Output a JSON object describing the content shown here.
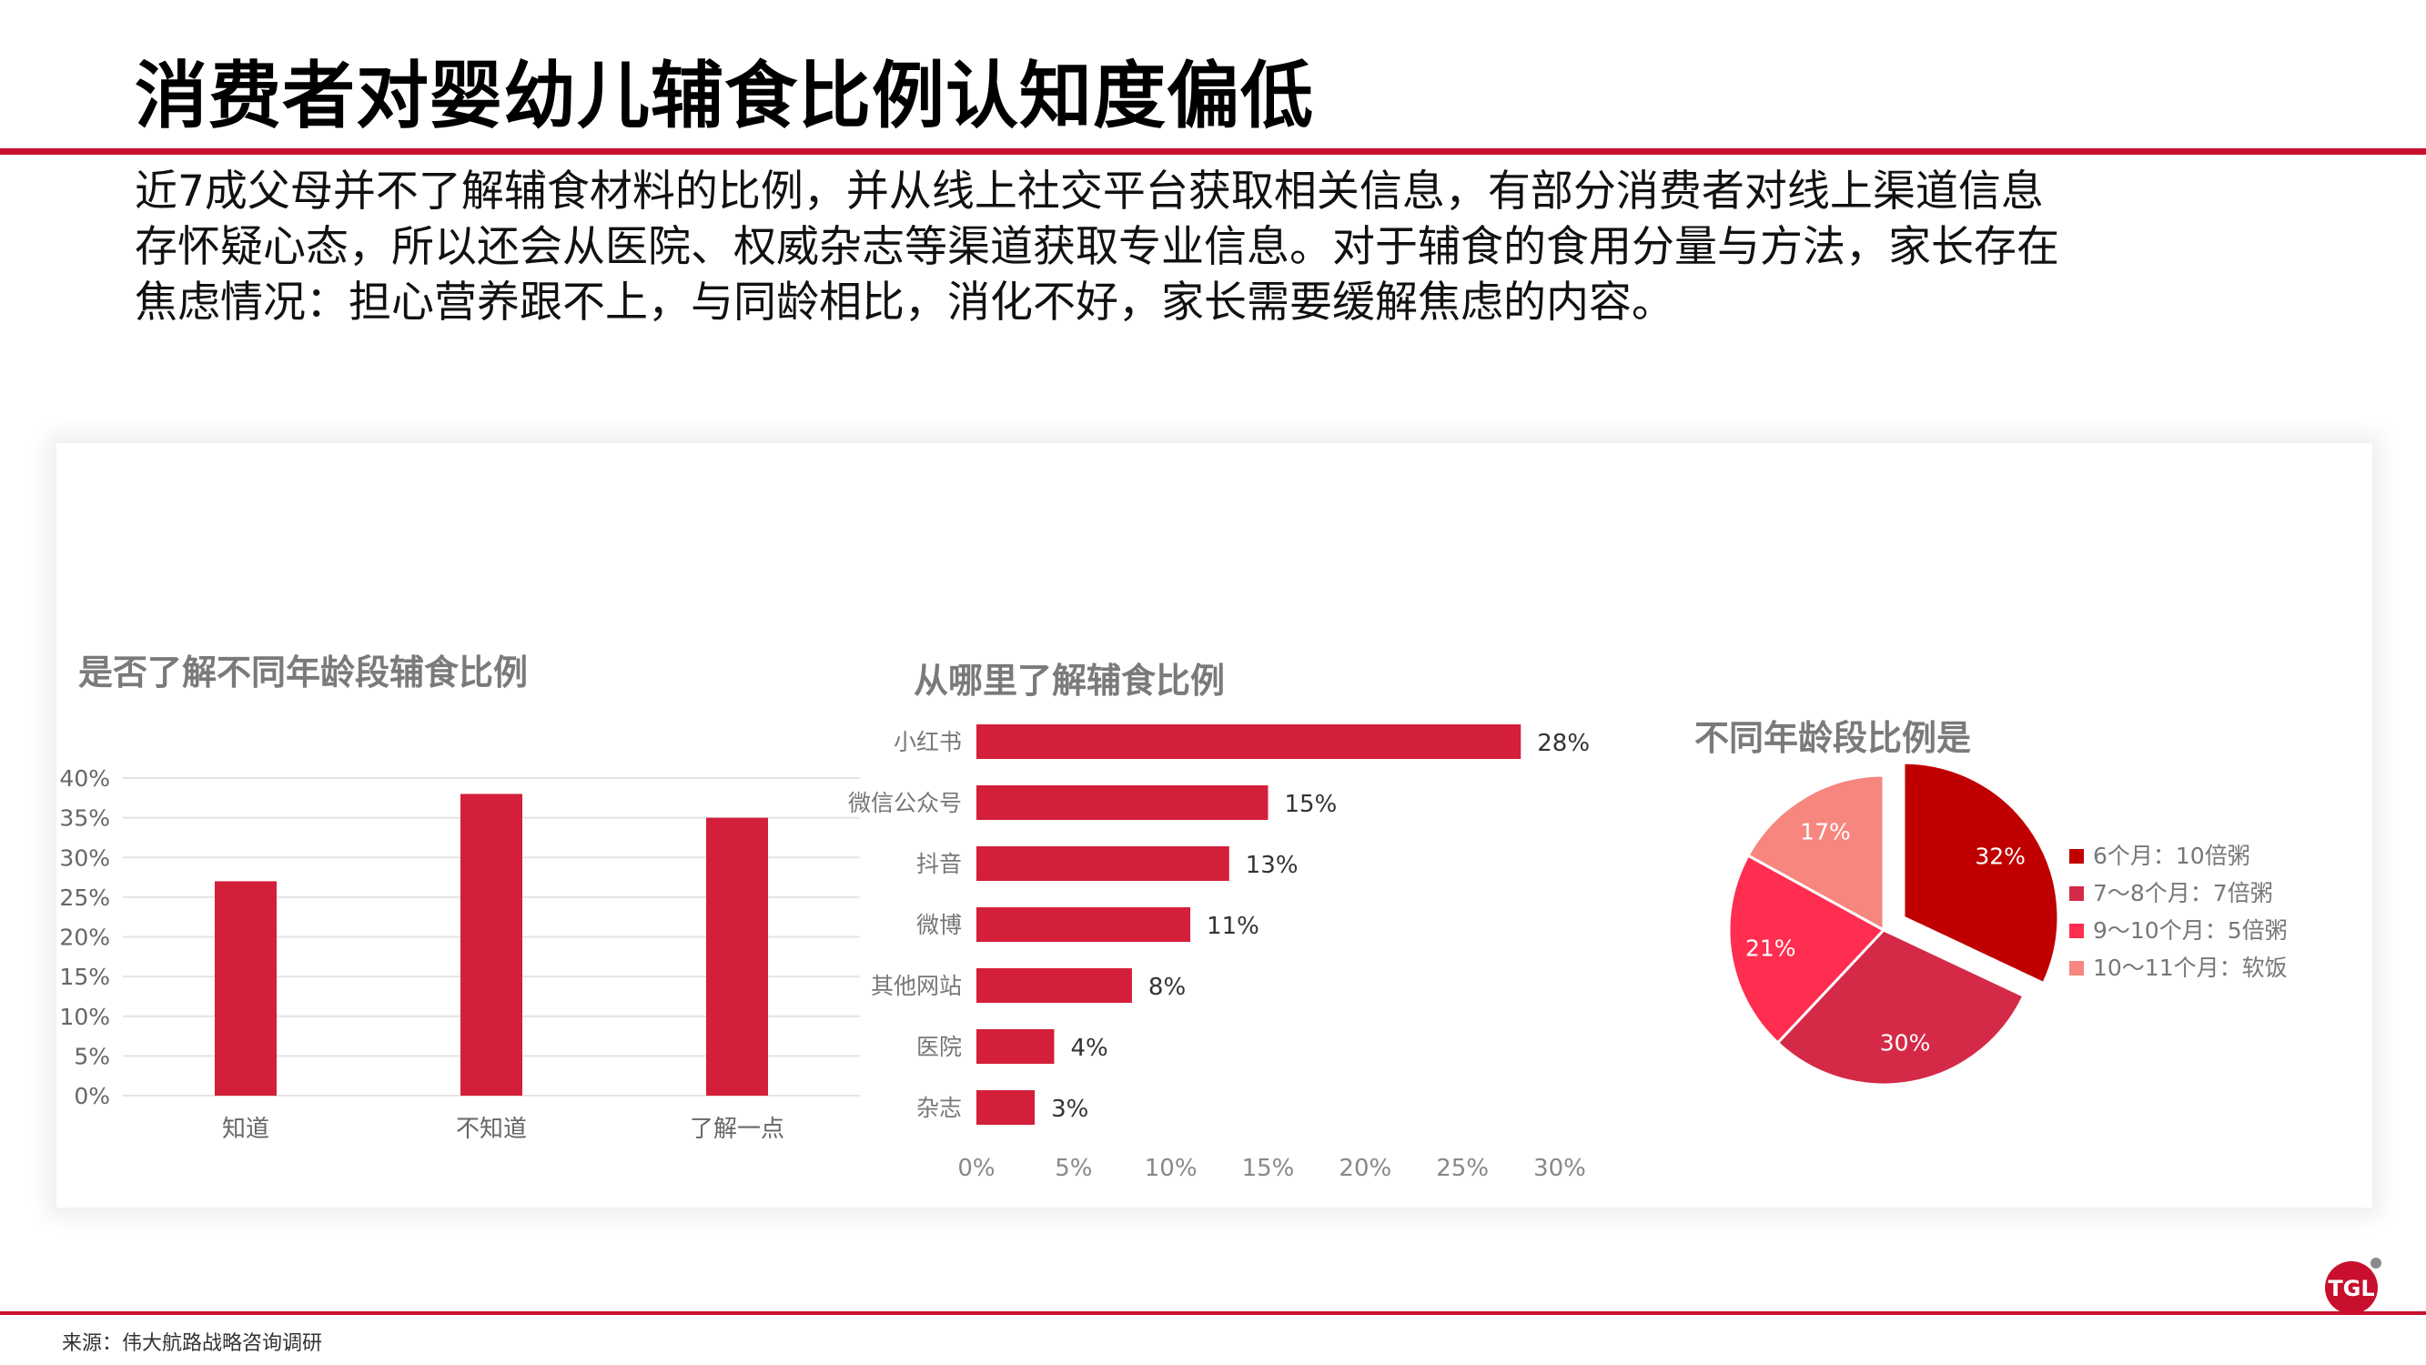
{
  "page": {
    "title": "消费者对婴幼儿辅食比例认知度偏低",
    "intro_lines": [
      "近7成父母并不了解辅食材料的比例，并从线上社交平台获取相关信息，有部分消费者对线上渠道信息",
      "存怀疑心态，所以还会从医院、权威杂志等渠道获取专业信息。对于辅食的食用分量与方法，家长存在",
      "焦虑情况：担心营养跟不上，与同龄相比，消化不好，家长需要缓解焦虑的内容。"
    ],
    "source": "来源：伟大航路战略咨询调研",
    "logo_text": "TGL",
    "accent_color": "#c8102e"
  },
  "chart_data": [
    {
      "type": "bar",
      "title": "是否了解不同年龄段辅食比例",
      "categories": [
        "知道",
        "不知道",
        "了解一点"
      ],
      "values": [
        27,
        38,
        35
      ],
      "ylim": [
        0,
        40
      ],
      "yticks": [
        "0%",
        "5%",
        "10%",
        "15%",
        "20%",
        "25%",
        "30%",
        "35%",
        "40%"
      ],
      "grid": true,
      "color": "#d41f3a"
    },
    {
      "type": "bar",
      "orientation": "horizontal",
      "title": "从哪里了解辅食比例",
      "categories": [
        "小红书",
        "微信公众号",
        "抖音",
        "微博",
        "其他网站",
        "医院",
        "杂志"
      ],
      "values": [
        28,
        15,
        13,
        11,
        8,
        4,
        3
      ],
      "value_labels": [
        "28%",
        "15%",
        "13%",
        "11%",
        "8%",
        "4%",
        "3%"
      ],
      "xlim": [
        0,
        30
      ],
      "xticks": [
        "0%",
        "5%",
        "10%",
        "15%",
        "20%",
        "25%",
        "30%"
      ],
      "color": "#d41f3a"
    },
    {
      "type": "pie",
      "title": "不同年龄段比例是",
      "labels": [
        "6个月：10倍粥",
        "7～8个月：7倍粥",
        "9～10个月：5倍粥",
        "10～11个月：软饭"
      ],
      "values": [
        32,
        30,
        21,
        17
      ],
      "value_labels": [
        "32%",
        "30%",
        "21%",
        "17%"
      ],
      "colors": [
        "#c00000",
        "#d42a48",
        "#ff2d4f",
        "#f7867e"
      ],
      "exploded": [
        "6个月：10倍粥"
      ],
      "legend": "right"
    }
  ]
}
